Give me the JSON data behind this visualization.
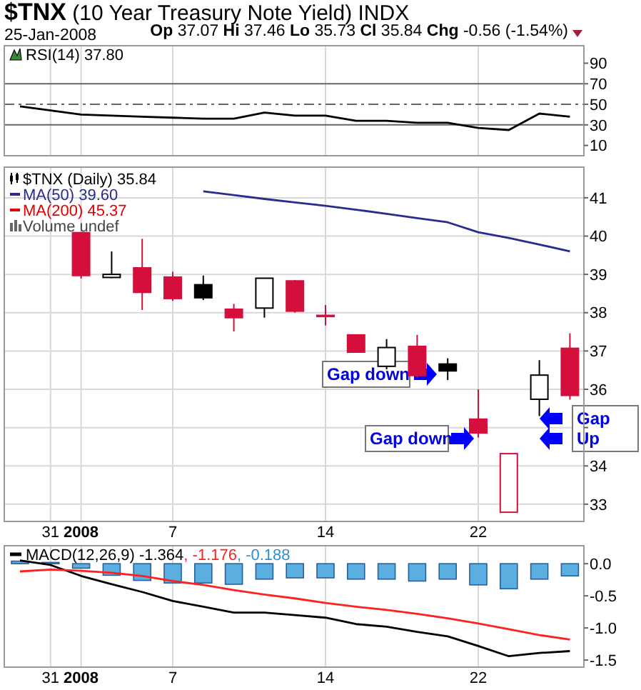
{
  "chart_data": [
    {
      "type": "line",
      "title": "$TNX (10 Year Treasury Note Yield) INDX",
      "subtitle": "25-Jan-2008",
      "annotations": [
        "Op 37.07 Hi 37.46 Lo 35.73 Cl 35.84 Chg -0.56 (-1.54%)"
      ],
      "categories": [
        null,
        "31",
        "2008",
        null,
        null,
        "7",
        null,
        null,
        null,
        null,
        "14",
        null,
        null,
        null,
        null,
        "22",
        null,
        null,
        null
      ],
      "series": [
        {
          "name": "RSI(14) 37.80",
          "color": "#000000",
          "values": [
            48,
            44,
            40,
            39,
            38,
            37,
            36,
            36,
            42,
            39,
            39,
            34,
            34,
            32,
            32,
            27,
            25,
            41,
            38
          ]
        }
      ],
      "ylim": [
        0,
        107
      ],
      "yticks": [
        10,
        30,
        50,
        70,
        90
      ],
      "ref_lines": [
        {
          "axis": "y",
          "value": 70,
          "color": "#666666",
          "line_style": "solid"
        },
        {
          "axis": "y",
          "value": 50,
          "color": "#666666",
          "line_style": "dashed"
        },
        {
          "axis": "y",
          "value": 30,
          "color": "#666666",
          "line_style": "solid"
        }
      ],
      "grid": "x",
      "legend": "top left",
      "tick_labels": "y"
    },
    {
      "type": "candlestick",
      "legend_title": "$TNX (Daily) 35.84",
      "categories": [
        null,
        "31",
        "2008",
        null,
        null,
        "7",
        null,
        null,
        null,
        null,
        "14",
        null,
        null,
        null,
        null,
        "22",
        null,
        null,
        null
      ],
      "ohlc": [
        null,
        null,
        [
          40.09,
          40.09,
          38.89,
          38.97
        ],
        [
          38.92,
          39.6,
          38.9,
          39.0
        ],
        [
          39.17,
          39.93,
          38.07,
          38.53
        ],
        [
          38.93,
          39.07,
          38.31,
          38.37
        ],
        [
          38.73,
          38.97,
          38.33,
          38.39
        ],
        [
          38.09,
          38.23,
          37.51,
          37.87
        ],
        [
          38.12,
          38.9,
          37.87,
          38.9
        ],
        [
          38.83,
          38.85,
          38.0,
          38.04
        ],
        [
          37.93,
          38.2,
          37.67,
          37.93
        ],
        [
          37.42,
          37.42,
          36.97,
          36.97
        ],
        [
          36.6,
          37.31,
          36.52,
          37.09
        ],
        [
          37.12,
          37.42,
          36.3,
          36.36
        ],
        [
          36.66,
          36.81,
          36.24,
          36.48
        ],
        [
          35.22,
          36.0,
          34.74,
          34.86
        ],
        [
          32.79,
          34.32,
          32.79,
          34.32
        ],
        [
          35.74,
          36.76,
          35.3,
          36.37
        ],
        [
          37.07,
          37.46,
          35.73,
          35.84
        ]
      ],
      "colors": [
        null,
        null,
        "#d40f3c",
        "#000000",
        "#d40f3c",
        "#d40f3c",
        "#000000",
        "#d40f3c",
        "#000000",
        "#d40f3c",
        "#d40f3c",
        "#d40f3c",
        "#000000",
        "#d40f3c",
        "#000000",
        "#d40f3c",
        "#d40f3c",
        "#000000",
        "#d40f3c"
      ],
      "series": [
        {
          "type": "line",
          "name": "MA(50) 39.60",
          "color": "#2b2b8f",
          "values": [
            null,
            null,
            null,
            null,
            null,
            null,
            41.17,
            41.07,
            40.97,
            40.88,
            40.79,
            40.69,
            40.58,
            40.47,
            40.36,
            40.1,
            39.95,
            39.78,
            39.6
          ]
        },
        {
          "type": "line",
          "name": "MA(200) 45.37",
          "color": "#e00000",
          "values": [
            null,
            null,
            null,
            null,
            null,
            null,
            null,
            null,
            null,
            null,
            null,
            null,
            null,
            null,
            null,
            null,
            null,
            null,
            null
          ]
        }
      ],
      "annotations": [
        "Gap down",
        "Gap down",
        "Gap Up",
        "Volume undef"
      ],
      "ylim": [
        32.55,
        41.8
      ],
      "yticks": [
        33,
        34,
        {
          "value": 35,
          "label": null
        },
        36,
        37,
        38,
        39,
        40,
        41
      ],
      "grid": true,
      "legend": "top left"
    },
    {
      "type": "line",
      "categories": [
        null,
        "31",
        "2008",
        null,
        null,
        "7",
        null,
        null,
        null,
        null,
        "14",
        null,
        null,
        null,
        null,
        "22",
        null,
        null,
        null
      ],
      "series": [
        {
          "type": "line",
          "name": "MACD(12,26,9) -1.364",
          "color": "#000000",
          "values": [
            0.05,
            -0.02,
            -0.19,
            -0.32,
            -0.44,
            -0.58,
            -0.67,
            -0.76,
            -0.76,
            -0.8,
            -0.84,
            -0.94,
            -0.98,
            -1.06,
            -1.13,
            -1.28,
            -1.44,
            -1.39,
            -1.36
          ]
        },
        {
          "type": "line",
          "name": ", -1.176",
          "color": "#ff2020",
          "values": [
            -0.12,
            -0.09,
            -0.11,
            -0.14,
            -0.19,
            -0.27,
            -0.33,
            -0.41,
            -0.48,
            -0.54,
            -0.61,
            -0.67,
            -0.72,
            -0.78,
            -0.85,
            -0.93,
            -1.02,
            -1.11,
            -1.18
          ]
        },
        {
          "type": "bar",
          "name": ", -0.188",
          "color": "#5aaee0",
          "values": [
            0.04,
            0.02,
            -0.07,
            -0.18,
            -0.26,
            -0.3,
            -0.3,
            -0.32,
            -0.24,
            -0.22,
            -0.22,
            -0.24,
            -0.24,
            -0.27,
            -0.24,
            -0.33,
            -0.39,
            -0.24,
            -0.19
          ]
        }
      ],
      "ylim": [
        -1.61,
        0.28
      ],
      "yticks": [
        {
          "value": 0,
          "label": "0.0"
        },
        {
          "value": -0.5,
          "label": "-0.5"
        },
        {
          "value": -1,
          "label": "-1.0"
        },
        {
          "value": -1.5,
          "label": "-1.5"
        }
      ],
      "grid": "x",
      "legend": "top left"
    }
  ]
}
